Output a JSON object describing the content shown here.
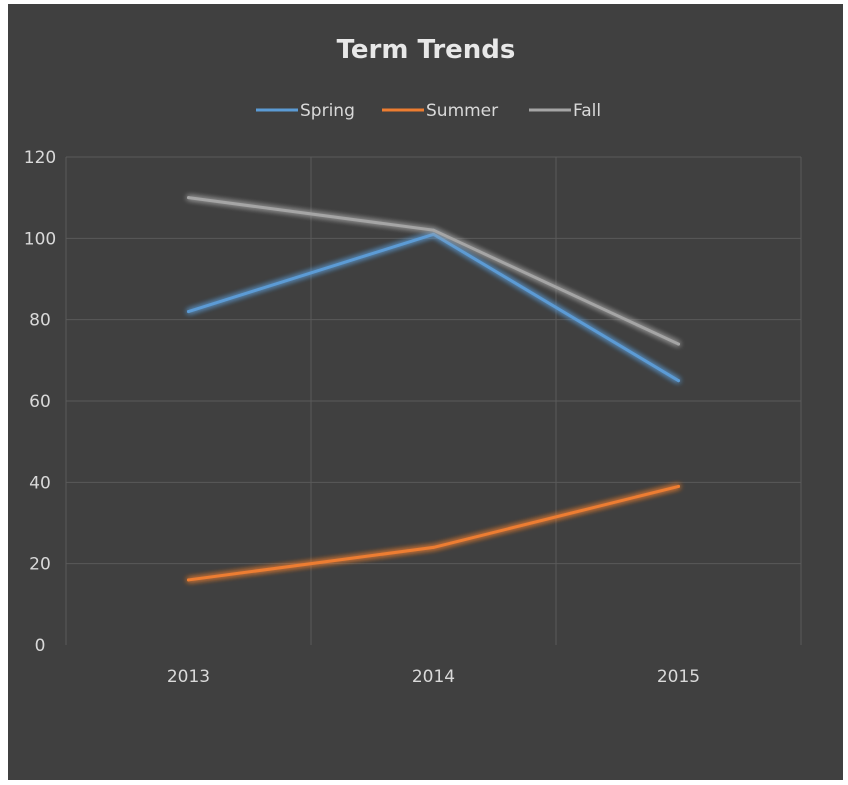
{
  "chart_data": {
    "type": "line",
    "title": "Term Trends",
    "categories": [
      "2013",
      "2014",
      "2015"
    ],
    "series": [
      {
        "name": "Spring",
        "values": [
          82,
          101,
          65
        ],
        "color": "#5b9bd5"
      },
      {
        "name": "Summer",
        "values": [
          16,
          24,
          39
        ],
        "color": "#ed7d31"
      },
      {
        "name": "Fall",
        "values": [
          110,
          102,
          74
        ],
        "color": "#a5a5a5"
      }
    ],
    "ylim": [
      0,
      120
    ],
    "yticks": [
      0,
      20,
      40,
      60,
      80,
      100,
      120
    ],
    "grid": true,
    "legend": "top",
    "background": "#404040"
  }
}
